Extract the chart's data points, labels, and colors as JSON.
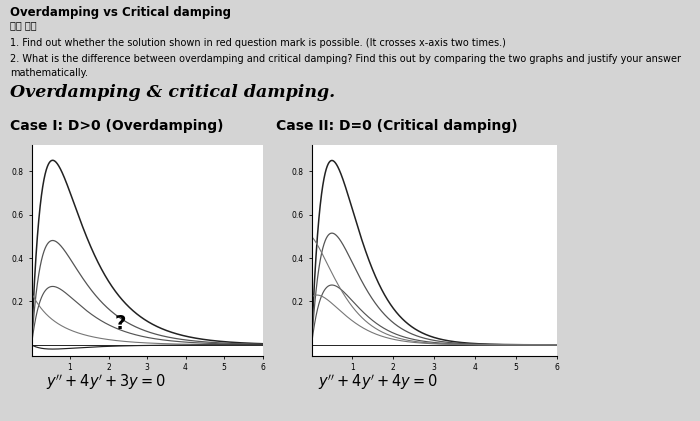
{
  "title": "Overdamping vs Critical damping",
  "subtitle": "모든 섹션",
  "question1": "1. Find out whether the solution shown in red question mark is possible. (It crosses x-axis two times.)",
  "q2_line1": "2. What is the difference between overdamping and critical damping? Find this out by comparing the two graphs and justify your answer",
  "q2_line2": "mathematically.",
  "section_title": "Overdamping & critical damping.",
  "case1_label": "Case I: D>0 (Overdamping)",
  "case2_label": "Case II: D=0 (Critical damping)",
  "eq1": "$y'' + 4y' + 3y = 0$",
  "eq2": "$y'' + 4y' + 4y = 0$",
  "bg_color": "#d4d4d4",
  "xlim": [
    0,
    6
  ],
  "ylim": [
    -0.05,
    0.92
  ],
  "yticks": [
    0.2,
    0.4,
    0.6,
    0.8
  ],
  "xticks": [
    1,
    2,
    3,
    4,
    5,
    6
  ]
}
